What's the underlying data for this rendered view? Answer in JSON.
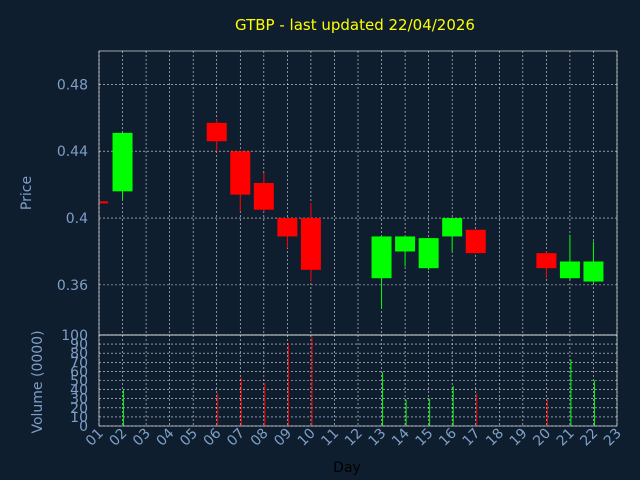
{
  "chart_data": {
    "type": "candlestick",
    "title": "GTBP - last updated 22/04/2026",
    "colors": {
      "background": "#0f1e2f",
      "up": "#00ff00",
      "down": "#ff0000",
      "text": "#7e9fc6",
      "title": "#ffff00",
      "grid": "#ffffff"
    },
    "grid": true,
    "x_ticks": [
      "01",
      "02",
      "03",
      "04",
      "05",
      "06",
      "07",
      "08",
      "09",
      "10",
      "11",
      "12",
      "13",
      "14",
      "15",
      "16",
      "17",
      "18",
      "19",
      "20",
      "21",
      "22",
      "23"
    ],
    "xlabel": "Day",
    "price_panel": {
      "ylabel": "Price",
      "ylim": [
        0.33,
        0.5
      ],
      "y_ticks": [
        "0.36",
        "0.4",
        "0.44",
        "0.48"
      ],
      "candles": [
        {
          "day": 1,
          "open": 0.41,
          "high": 0.41,
          "low": 0.41,
          "close": 0.409,
          "direction": "down"
        },
        {
          "day": 2,
          "open": 0.416,
          "high": 0.451,
          "low": 0.411,
          "close": 0.451,
          "direction": "up"
        },
        {
          "day": 6,
          "open": 0.457,
          "high": 0.459,
          "low": 0.44,
          "close": 0.446,
          "direction": "down"
        },
        {
          "day": 7,
          "open": 0.44,
          "high": 0.44,
          "low": 0.404,
          "close": 0.414,
          "direction": "down"
        },
        {
          "day": 8,
          "open": 0.421,
          "high": 0.427,
          "low": 0.404,
          "close": 0.405,
          "direction": "down"
        },
        {
          "day": 9,
          "open": 0.4,
          "high": 0.4,
          "low": 0.382,
          "close": 0.389,
          "direction": "down"
        },
        {
          "day": 10,
          "open": 0.4,
          "high": 0.409,
          "low": 0.362,
          "close": 0.369,
          "direction": "down"
        },
        {
          "day": 13,
          "open": 0.364,
          "high": 0.389,
          "low": 0.346,
          "close": 0.389,
          "direction": "up"
        },
        {
          "day": 14,
          "open": 0.38,
          "high": 0.389,
          "low": 0.371,
          "close": 0.389,
          "direction": "up"
        },
        {
          "day": 15,
          "open": 0.37,
          "high": 0.388,
          "low": 0.369,
          "close": 0.388,
          "direction": "up"
        },
        {
          "day": 16,
          "open": 0.389,
          "high": 0.4,
          "low": 0.38,
          "close": 0.4,
          "direction": "up"
        },
        {
          "day": 17,
          "open": 0.393,
          "high": 0.393,
          "low": 0.379,
          "close": 0.379,
          "direction": "down"
        },
        {
          "day": 20,
          "open": 0.379,
          "high": 0.38,
          "low": 0.364,
          "close": 0.37,
          "direction": "down"
        },
        {
          "day": 21,
          "open": 0.364,
          "high": 0.39,
          "low": 0.363,
          "close": 0.374,
          "direction": "up"
        },
        {
          "day": 22,
          "open": 0.362,
          "high": 0.386,
          "low": 0.361,
          "close": 0.374,
          "direction": "up"
        }
      ]
    },
    "volume_panel": {
      "ylabel": "Volume (0000)",
      "ylim": [
        0,
        100
      ],
      "y_ticks": [
        "0",
        "10",
        "20",
        "30",
        "40",
        "50",
        "60",
        "70",
        "80",
        "90",
        "100"
      ],
      "bars": [
        {
          "day": 2,
          "value": 40,
          "direction": "up"
        },
        {
          "day": 6,
          "value": 36,
          "direction": "down"
        },
        {
          "day": 7,
          "value": 53,
          "direction": "down"
        },
        {
          "day": 8,
          "value": 47,
          "direction": "down"
        },
        {
          "day": 9,
          "value": 91,
          "direction": "down"
        },
        {
          "day": 10,
          "value": 98,
          "direction": "down"
        },
        {
          "day": 13,
          "value": 59,
          "direction": "up"
        },
        {
          "day": 14,
          "value": 29,
          "direction": "up"
        },
        {
          "day": 15,
          "value": 30,
          "direction": "up"
        },
        {
          "day": 16,
          "value": 44,
          "direction": "up"
        },
        {
          "day": 17,
          "value": 36,
          "direction": "down"
        },
        {
          "day": 20,
          "value": 29,
          "direction": "down"
        },
        {
          "day": 21,
          "value": 73,
          "direction": "up"
        },
        {
          "day": 22,
          "value": 50,
          "direction": "up"
        }
      ]
    }
  }
}
